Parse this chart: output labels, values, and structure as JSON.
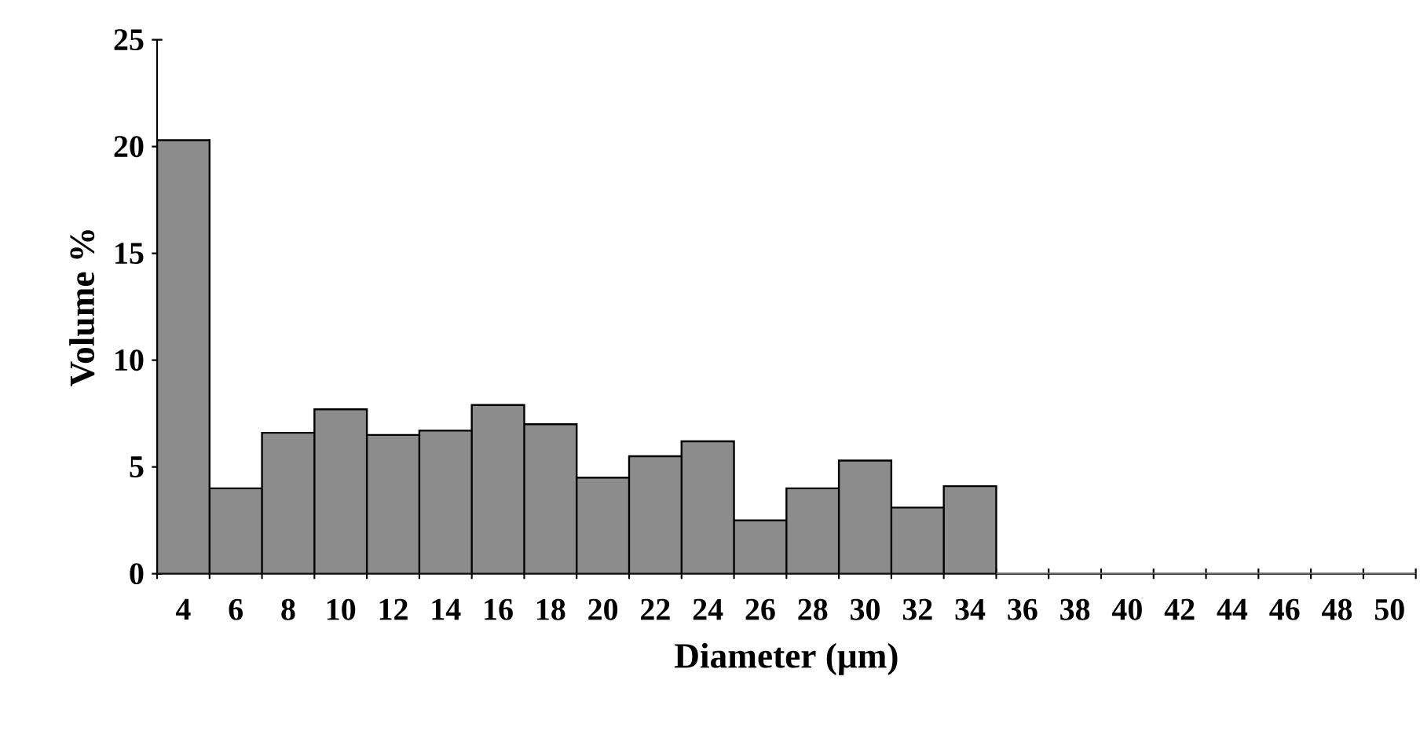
{
  "chart_data": {
    "type": "bar",
    "xlabel": "Diameter (μm)",
    "ylabel": "Volume %",
    "categories": [
      "4",
      "6",
      "8",
      "10",
      "12",
      "14",
      "16",
      "18",
      "20",
      "22",
      "24",
      "26",
      "28",
      "30",
      "32",
      "34",
      "36",
      "38",
      "40",
      "42",
      "44",
      "46",
      "48",
      "50"
    ],
    "values": [
      20.3,
      4.0,
      6.6,
      7.7,
      6.5,
      6.7,
      7.9,
      7.0,
      4.5,
      5.5,
      6.2,
      2.5,
      4.0,
      5.3,
      3.1,
      4.1,
      0,
      0,
      0,
      0,
      0,
      0,
      0,
      0
    ],
    "color": "#8c8c8c",
    "ylim": [
      0,
      25
    ],
    "yticks": [
      0,
      5,
      10,
      15,
      20,
      25
    ]
  }
}
